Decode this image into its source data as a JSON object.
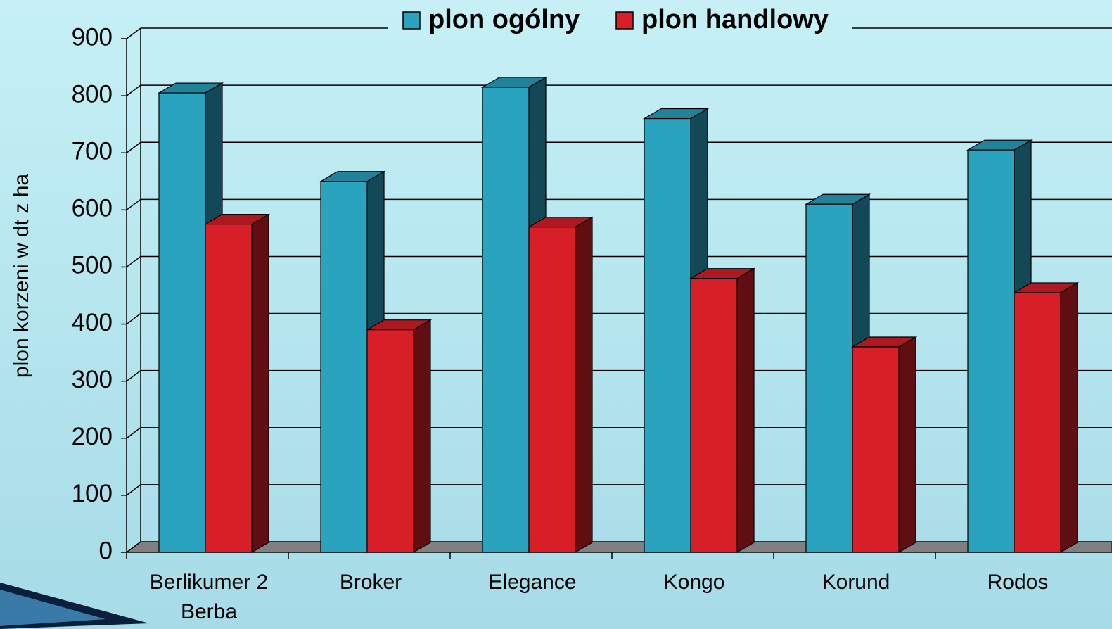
{
  "chart_data": {
    "type": "bar3d",
    "y_label": "plon korzeni w dt z ha",
    "categories": [
      "Berlikumer 2 Berba",
      "Broker",
      "Elegance",
      "Kongo",
      "Korund",
      "Rodos"
    ],
    "series": [
      {
        "name": "plon ogólny",
        "color": "#2aa3bf",
        "values": [
          805,
          650,
          815,
          760,
          610,
          705
        ]
      },
      {
        "name": "plon handlowy",
        "color": "#d81f28",
        "values": [
          575,
          390,
          570,
          480,
          360,
          455
        ]
      }
    ],
    "ylim": [
      0,
      900
    ],
    "yticks": [
      0,
      100,
      200,
      300,
      400,
      500,
      600,
      700,
      800,
      900
    ],
    "grid": true,
    "legend": "top"
  }
}
